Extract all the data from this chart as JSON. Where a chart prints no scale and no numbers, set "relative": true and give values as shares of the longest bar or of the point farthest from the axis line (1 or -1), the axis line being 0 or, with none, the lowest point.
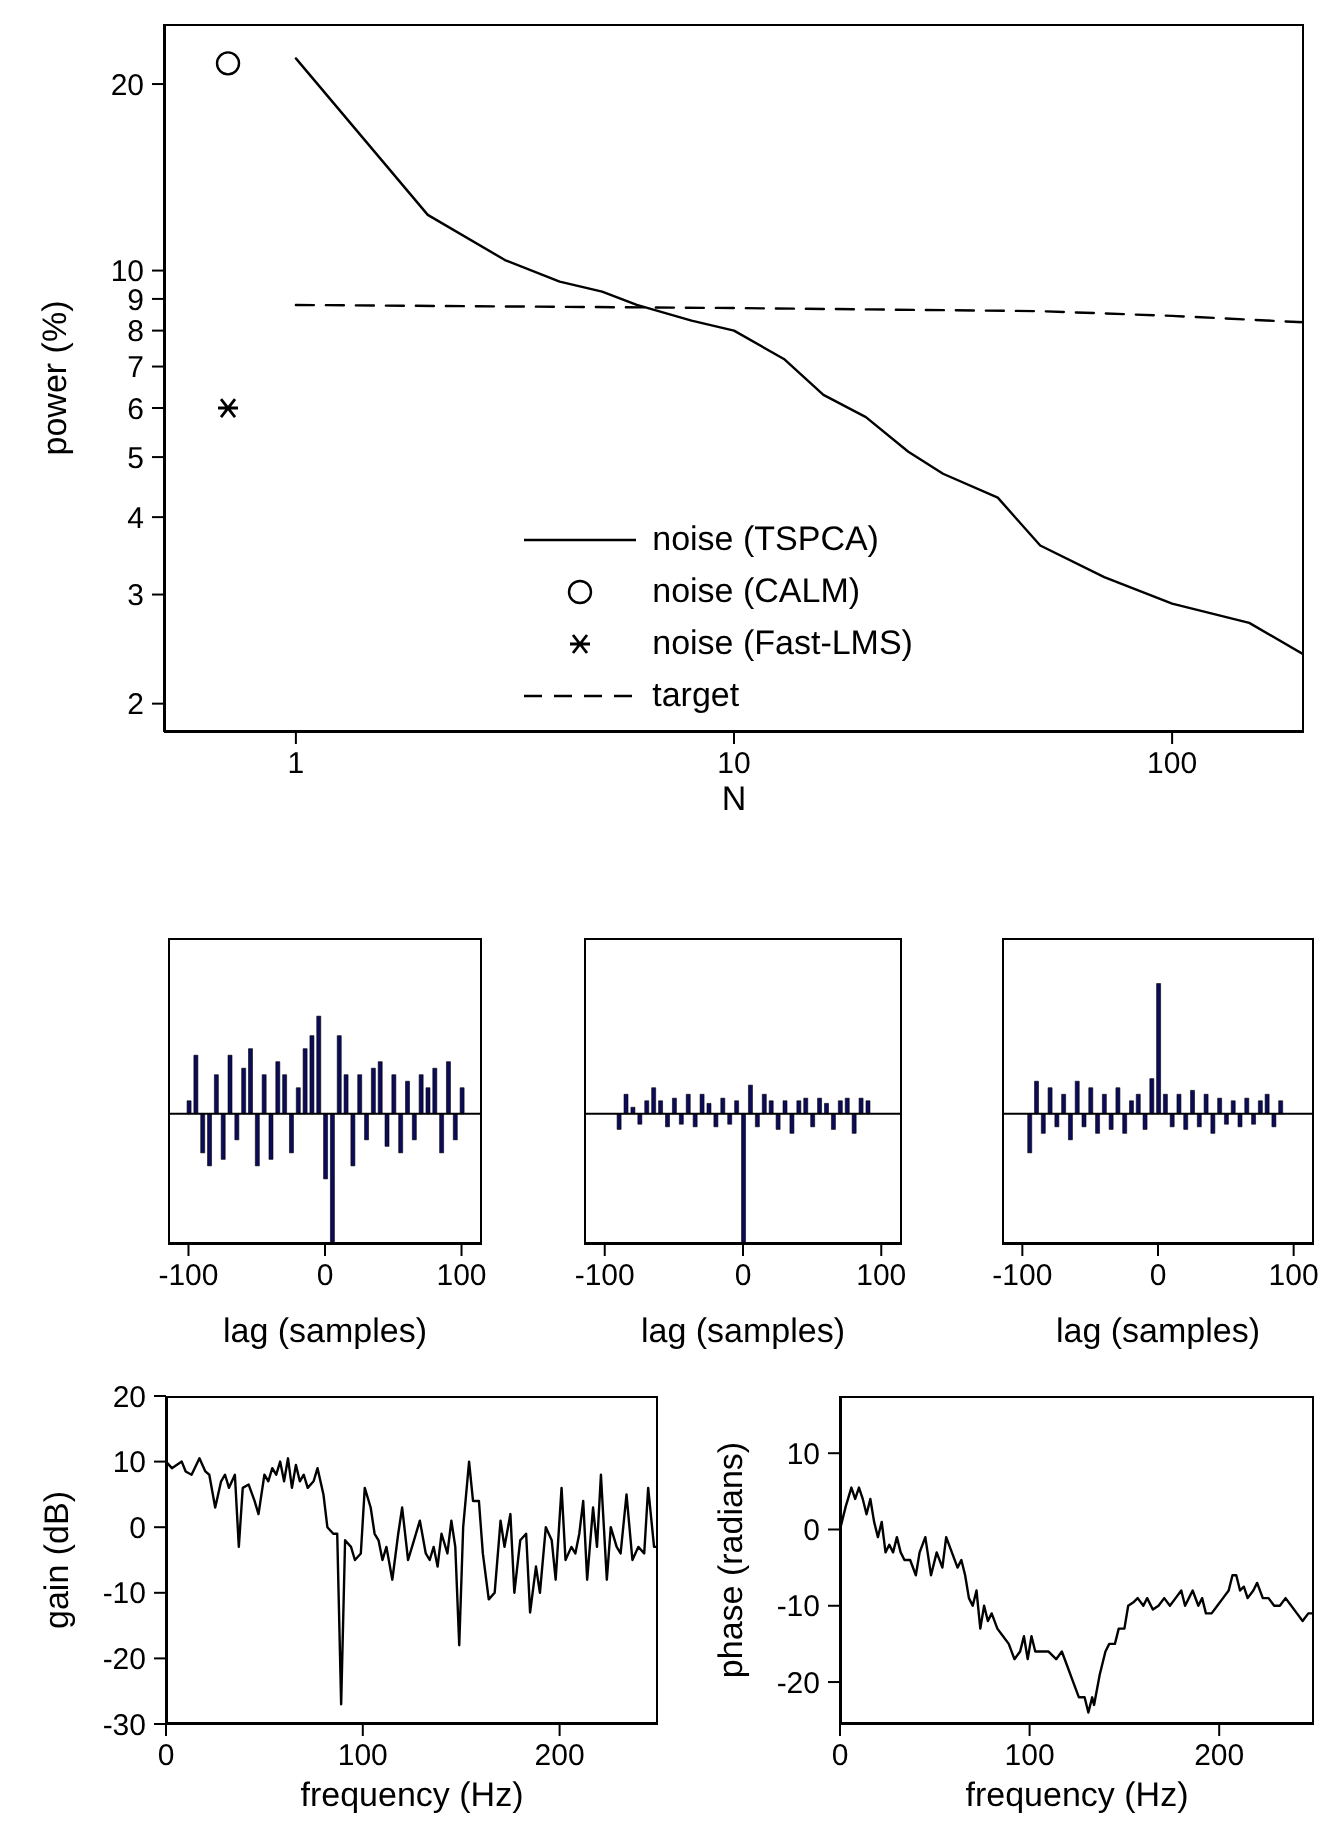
{
  "chart_data": [
    {
      "type": "line",
      "xlabel": "N",
      "ylabel": "power (%)",
      "log": "xy",
      "xlim": [
        0.5,
        200
      ],
      "ylim": [
        1.8,
        25
      ],
      "xticks": [
        1,
        10,
        100
      ],
      "yticks": [
        2,
        3,
        4,
        5,
        6,
        7,
        8,
        9,
        10,
        20
      ],
      "legend": "bottom",
      "series": [
        {
          "name": "noise (TSPCA)",
          "color": "#000000",
          "line_style": "solid",
          "x": [
            1,
            2,
            3,
            4,
            5,
            6,
            8,
            10,
            13,
            16,
            20,
            25,
            30,
            40,
            50,
            70,
            100,
            150,
            200
          ],
          "values": [
            22,
            12.3,
            10.4,
            9.6,
            9.25,
            8.8,
            8.3,
            8.0,
            7.2,
            6.3,
            5.8,
            5.1,
            4.7,
            4.3,
            3.6,
            3.2,
            2.9,
            2.7,
            2.4
          ]
        },
        {
          "name": "noise (CALM)",
          "type": "scatter",
          "color": "#000000",
          "marker": "circle",
          "x": [
            0.7
          ],
          "values": [
            21.6
          ]
        },
        {
          "name": "noise (Fast-LMS)",
          "type": "scatter",
          "color": "#000000",
          "marker": "cross",
          "x": [
            0.7
          ],
          "values": [
            6
          ]
        },
        {
          "name": "target",
          "color": "#000000",
          "line_style": "dashed",
          "x": [
            1,
            10,
            50,
            100,
            200
          ],
          "values": [
            8.8,
            8.7,
            8.6,
            8.45,
            8.25
          ]
        }
      ]
    },
    {
      "type": "bar",
      "relative": true,
      "xlabel": "lag (samples)",
      "xlim": [
        -115,
        115
      ],
      "xticks": [
        -100,
        0,
        100
      ],
      "tick_labels": "x",
      "color": "#0b0b5a",
      "ref_lines": [
        {
          "axis": "y",
          "value": 0
        }
      ],
      "x": [
        -100,
        -95,
        -90,
        -85,
        -80,
        -75,
        -70,
        -65,
        -60,
        -55,
        -50,
        -45,
        -40,
        -35,
        -30,
        -25,
        -20,
        -15,
        -10,
        -5,
        0,
        5,
        10,
        15,
        20,
        25,
        30,
        35,
        40,
        45,
        50,
        55,
        60,
        65,
        70,
        75,
        80,
        85,
        90,
        95,
        100
      ],
      "values": [
        0.1,
        0.45,
        -0.3,
        -0.4,
        0.3,
        -0.35,
        0.45,
        -0.2,
        0.35,
        0.5,
        -0.4,
        0.3,
        -0.35,
        0.4,
        0.3,
        -0.3,
        0.2,
        0.5,
        0.6,
        0.75,
        -0.5,
        -1,
        0.6,
        0.3,
        -0.4,
        0.3,
        -0.2,
        0.35,
        0.4,
        -0.25,
        0.3,
        -0.3,
        0.25,
        -0.2,
        0.3,
        0.2,
        0.35,
        -0.3,
        0.4,
        -0.2,
        0.2
      ]
    },
    {
      "type": "bar",
      "relative": true,
      "xlabel": "lag (samples)",
      "xlim": [
        -115,
        115
      ],
      "xticks": [
        -100,
        0,
        100
      ],
      "tick_labels": "x",
      "color": "#0b0b5a",
      "ref_lines": [
        {
          "axis": "y",
          "value": 0
        }
      ],
      "x": [
        -90,
        -85,
        -80,
        -75,
        -70,
        -65,
        -60,
        -55,
        -50,
        -45,
        -40,
        -35,
        -30,
        -25,
        -20,
        -15,
        -10,
        -5,
        0,
        5,
        10,
        15,
        20,
        25,
        30,
        35,
        40,
        45,
        50,
        55,
        60,
        65,
        70,
        75,
        80,
        85,
        90
      ],
      "values": [
        -0.12,
        0.15,
        0.05,
        -0.08,
        0.1,
        0.2,
        0.1,
        -0.1,
        0.12,
        -0.08,
        0.15,
        -0.1,
        0.15,
        0.08,
        -0.1,
        0.12,
        -0.08,
        0.1,
        -1,
        0.22,
        -0.1,
        0.15,
        0.1,
        -0.12,
        0.1,
        -0.15,
        0.1,
        0.12,
        -0.1,
        0.12,
        0.08,
        -0.12,
        0.1,
        0.12,
        -0.15,
        0.12,
        0.1
      ]
    },
    {
      "type": "bar",
      "relative": true,
      "xlabel": "lag (samples)",
      "xlim": [
        -115,
        115
      ],
      "xticks": [
        -100,
        0,
        100
      ],
      "tick_labels": "x",
      "color": "#0b0b5a",
      "ref_lines": [
        {
          "axis": "y",
          "value": 0
        }
      ],
      "x": [
        -95,
        -90,
        -85,
        -80,
        -75,
        -70,
        -65,
        -60,
        -55,
        -50,
        -45,
        -40,
        -35,
        -30,
        -25,
        -20,
        -15,
        -10,
        -5,
        0,
        5,
        10,
        15,
        20,
        25,
        30,
        35,
        40,
        45,
        50,
        55,
        60,
        65,
        70,
        75,
        80,
        85,
        90
      ],
      "values": [
        -0.3,
        0.25,
        -0.15,
        0.2,
        -0.1,
        0.15,
        -0.2,
        0.25,
        -0.1,
        0.2,
        -0.15,
        0.15,
        -0.12,
        0.2,
        -0.15,
        0.1,
        0.15,
        -0.12,
        0.27,
        1,
        0.15,
        -0.1,
        0.15,
        -0.12,
        0.18,
        -0.1,
        0.15,
        -0.15,
        0.12,
        -0.08,
        0.1,
        -0.1,
        0.12,
        -0.08,
        0.1,
        0.15,
        -0.1,
        0.1
      ]
    },
    {
      "type": "line",
      "xlabel": "frequency (Hz)",
      "ylabel": "gain (dB)",
      "xlim": [
        0,
        250
      ],
      "ylim": [
        -30,
        20
      ],
      "xticks": [
        0,
        100,
        200
      ],
      "yticks": [
        -30,
        -20,
        -10,
        0,
        10,
        20
      ],
      "color": "#000000",
      "x": [
        0,
        3,
        8,
        10,
        13,
        17,
        20,
        22,
        25,
        28,
        30,
        32,
        35,
        37,
        39,
        42,
        45,
        47,
        50,
        52,
        54,
        56,
        58,
        60,
        62,
        64,
        66,
        68,
        70,
        72,
        75,
        77,
        80,
        82,
        85,
        87,
        89,
        91,
        94,
        96,
        99,
        101,
        104,
        106,
        108,
        110,
        112,
        115,
        118,
        120,
        123,
        126,
        129,
        132,
        134,
        136,
        138,
        140,
        143,
        145,
        147,
        149,
        151,
        154,
        156,
        159,
        161,
        164,
        167,
        170,
        172,
        175,
        177,
        180,
        183,
        185,
        188,
        190,
        193,
        196,
        198,
        201,
        203,
        206,
        208,
        210,
        212,
        214,
        217,
        219,
        221,
        224,
        226,
        229,
        231,
        234,
        237,
        240,
        243,
        245,
        248,
        250
      ],
      "values": [
        10,
        9,
        10,
        8.5,
        8,
        10.5,
        8.5,
        8,
        3,
        7,
        8,
        6,
        8,
        -3,
        6,
        6.5,
        4,
        2,
        8,
        7,
        9,
        8,
        10,
        7,
        10.5,
        6,
        9.5,
        7,
        8,
        6,
        7,
        9,
        5,
        0,
        -1,
        -1,
        -27,
        -2,
        -3,
        -5,
        -4,
        6,
        3,
        -1,
        -2,
        -5,
        -3,
        -8,
        -1,
        3,
        -5,
        -2,
        1,
        -4,
        -5,
        -3,
        -6,
        -1,
        -4,
        1,
        -3,
        -18,
        0,
        10,
        4,
        4,
        -4,
        -11,
        -10,
        1,
        -3,
        2,
        -10,
        -2,
        -1,
        -13,
        -6,
        -10,
        0,
        -2,
        -8,
        6,
        -5,
        -3,
        -4,
        -1,
        4,
        -8,
        3,
        -3,
        8,
        -8,
        0,
        -3,
        -4,
        5,
        -5,
        -3,
        -4,
        6,
        -3,
        -3
      ]
    },
    {
      "type": "line",
      "xlabel": "frequency (Hz)",
      "ylabel": "phase (radians)",
      "xlim": [
        0,
        250
      ],
      "ylim": [
        -25.5,
        17.5
      ],
      "xticks": [
        0,
        100,
        200
      ],
      "yticks": [
        -20,
        -10,
        0,
        10
      ],
      "color": "#000000",
      "x": [
        0,
        3,
        6,
        8,
        10,
        12,
        14,
        16,
        18,
        20,
        22,
        24,
        26,
        28,
        30,
        32,
        34,
        37,
        40,
        42,
        45,
        48,
        51,
        54,
        56,
        59,
        62,
        64,
        66,
        68,
        70,
        72,
        74,
        76,
        78,
        80,
        83,
        86,
        89,
        92,
        95,
        97,
        99,
        101,
        103,
        106,
        110,
        114,
        117,
        120,
        123,
        126,
        129,
        131,
        133,
        134,
        137,
        140,
        142,
        145,
        147,
        150,
        152,
        155,
        157,
        160,
        162,
        165,
        168,
        171,
        174,
        177,
        180,
        182,
        184,
        186,
        189,
        191,
        193,
        196,
        199,
        202,
        205,
        207,
        209,
        211,
        213,
        215,
        218,
        220,
        223,
        226,
        229,
        232,
        235,
        238,
        241,
        244,
        247,
        250
      ],
      "values": [
        0,
        3,
        5.5,
        4,
        5.5,
        4,
        2,
        4,
        1,
        -1,
        1,
        -3,
        -2,
        -3,
        -1,
        -3,
        -4,
        -4,
        -6,
        -3,
        -1,
        -6,
        -3,
        -5,
        -1,
        -3,
        -5,
        -4,
        -6,
        -9,
        -10,
        -8,
        -13,
        -10,
        -12,
        -11,
        -13,
        -14,
        -15,
        -17,
        -16,
        -14,
        -17,
        -14,
        -16,
        -16,
        -16,
        -17,
        -16,
        -18,
        -20,
        -22,
        -22,
        -24,
        -22,
        -23,
        -19,
        -16,
        -15,
        -15,
        -13,
        -13,
        -10,
        -9.5,
        -9,
        -10,
        -9,
        -10.5,
        -10,
        -9,
        -10,
        -9,
        -8,
        -10,
        -9,
        -8,
        -10,
        -9,
        -11,
        -11,
        -10,
        -9,
        -8,
        -6,
        -6,
        -8,
        -7.5,
        -9,
        -8,
        -7,
        -9,
        -9,
        -10,
        -10,
        -9,
        -10,
        -11,
        -12,
        -11,
        -11
      ]
    }
  ]
}
